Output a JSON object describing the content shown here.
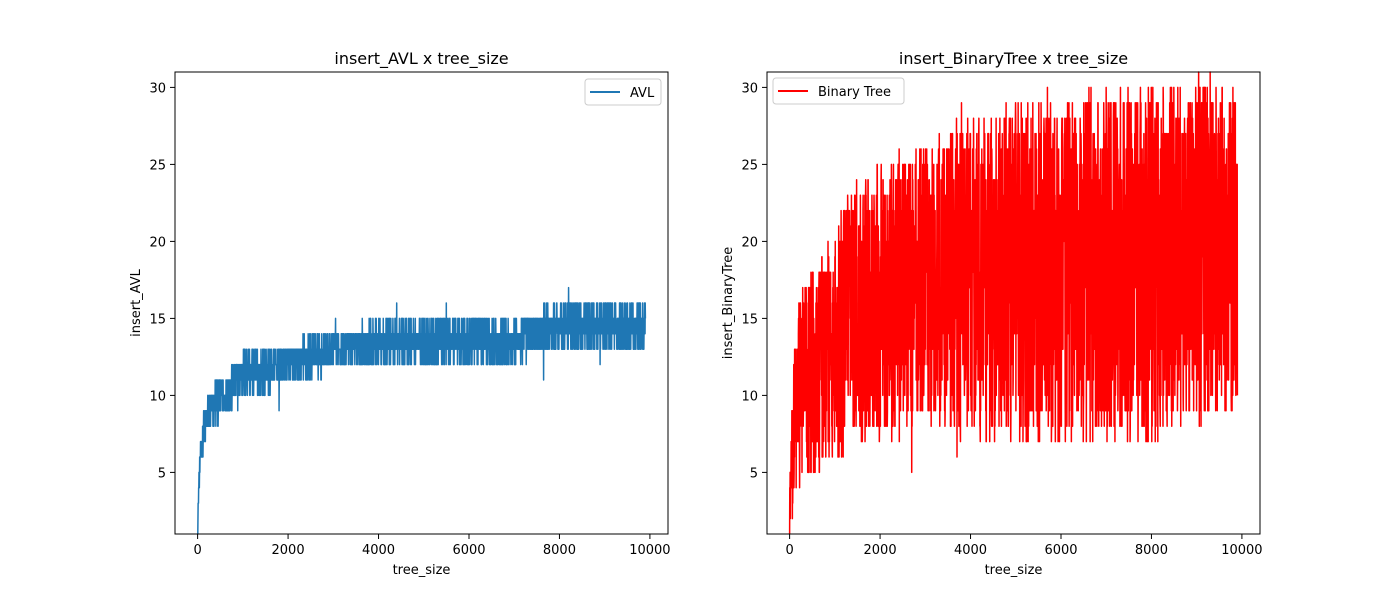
{
  "chart_data": [
    {
      "type": "line",
      "title": "insert_AVL x tree_size",
      "xlabel": "tree_size",
      "ylabel": "insert_AVL",
      "xlim": [
        -500,
        10400
      ],
      "ylim": [
        1,
        31
      ],
      "xticks": [
        0,
        2000,
        4000,
        6000,
        8000,
        10000
      ],
      "yticks": [
        5,
        10,
        15,
        20,
        25,
        30
      ],
      "xtick_labels": [
        "0",
        "2000",
        "4000",
        "6000",
        "8000",
        "10000"
      ],
      "ytick_labels": [
        "5",
        "10",
        "15",
        "20",
        "25",
        "30"
      ],
      "legend_position": "upper right",
      "series": [
        {
          "name": "AVL",
          "color": "#1f77b4",
          "x_range": [
            0,
            9900
          ],
          "envelope": {
            "x": [
              0,
              30,
              60,
              100,
              150,
              200,
              300,
              400,
              600,
              800,
              1000,
              1500,
              2000,
              2500,
              3000,
              4000,
              5000,
              6000,
              7000,
              8000,
              9000,
              9900
            ],
            "lower": [
              1,
              4,
              5,
              6,
              7,
              7,
              8,
              8,
              9,
              9,
              10,
              10,
              11,
              11,
              12,
              12,
              12,
              12,
              12,
              13,
              13,
              13
            ],
            "upper": [
              2,
              5,
              7,
              8,
              9,
              10,
              10,
              11,
              11,
              12,
              13,
              13,
              13,
              14,
              14,
              15,
              15,
              15,
              15,
              16,
              16,
              16
            ]
          },
          "outliers": [
            [
              1800,
              9
            ],
            [
              3050,
              15
            ],
            [
              4400,
              16
            ],
            [
              5500,
              16
            ],
            [
              7650,
              11
            ],
            [
              8200,
              17
            ],
            [
              8900,
              12
            ]
          ]
        }
      ]
    },
    {
      "type": "line",
      "title": "insert_BinaryTree x tree_size",
      "xlabel": "tree_size",
      "ylabel": "insert_BinaryTree",
      "xlim": [
        -500,
        10400
      ],
      "ylim": [
        1,
        31
      ],
      "xticks": [
        0,
        2000,
        4000,
        6000,
        8000,
        10000
      ],
      "yticks": [
        5,
        10,
        15,
        20,
        25,
        30
      ],
      "xtick_labels": [
        "0",
        "2000",
        "4000",
        "6000",
        "8000",
        "10000"
      ],
      "ytick_labels": [
        "5",
        "10",
        "15",
        "20",
        "25",
        "30"
      ],
      "legend_position": "upper left",
      "series": [
        {
          "name": "Binary Tree",
          "color": "#ff0000",
          "x_range": [
            0,
            9900
          ],
          "envelope": {
            "x": [
              0,
              50,
              100,
              200,
              400,
              600,
              800,
              1000,
              1500,
              2000,
              2500,
              3000,
              4000,
              5000,
              6000,
              7000,
              8000,
              9000,
              9900
            ],
            "lower": [
              1,
              2,
              3,
              4,
              4,
              5,
              5,
              6,
              7,
              7,
              7,
              8,
              7,
              7,
              7,
              7,
              7,
              8,
              9
            ],
            "upper": [
              5,
              9,
              13,
              17,
              18,
              19,
              20,
              21,
              24,
              25,
              26,
              27,
              28,
              29,
              29,
              30,
              30,
              31,
              30
            ]
          },
          "outliers": [
            [
              2700,
              5
            ],
            [
              3700,
              6
            ],
            [
              5500,
              7
            ],
            [
              6700,
              7
            ],
            [
              3800,
              29
            ],
            [
              5700,
              30
            ],
            [
              7000,
              30
            ],
            [
              9300,
              31
            ]
          ]
        }
      ]
    }
  ]
}
